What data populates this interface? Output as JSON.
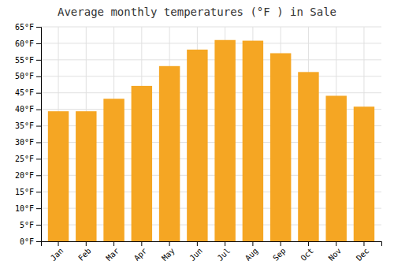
{
  "chart_data": {
    "type": "bar",
    "title": "Average monthly temperatures (°F ) in Sale",
    "categories": [
      "Jan",
      "Feb",
      "Mar",
      "Apr",
      "May",
      "Jun",
      "Jul",
      "Aug",
      "Sep",
      "Oct",
      "Nov",
      "Dec"
    ],
    "values": [
      39.4,
      39.4,
      43.2,
      47.1,
      53.1,
      58.1,
      61.0,
      60.8,
      57.0,
      51.3,
      44.1,
      40.8
    ],
    "color": "#F5A623",
    "ylim": [
      0,
      65
    ],
    "yticks": [
      {
        "value": 0,
        "label": "0°F"
      },
      {
        "value": 5,
        "label": "5°F"
      },
      {
        "value": 10,
        "label": "10°F"
      },
      {
        "value": 15,
        "label": "15°F"
      },
      {
        "value": 20,
        "label": "20°F"
      },
      {
        "value": 25,
        "label": "25°F"
      },
      {
        "value": 30,
        "label": "30°F"
      },
      {
        "value": 35,
        "label": "35°F"
      },
      {
        "value": 40,
        "label": "40°F"
      },
      {
        "value": 45,
        "label": "45°F"
      },
      {
        "value": 50,
        "label": "50°F"
      },
      {
        "value": 55,
        "label": "55°F"
      },
      {
        "value": 60,
        "label": "60°F"
      },
      {
        "value": 65,
        "label": "65°F"
      }
    ],
    "grid": true
  }
}
